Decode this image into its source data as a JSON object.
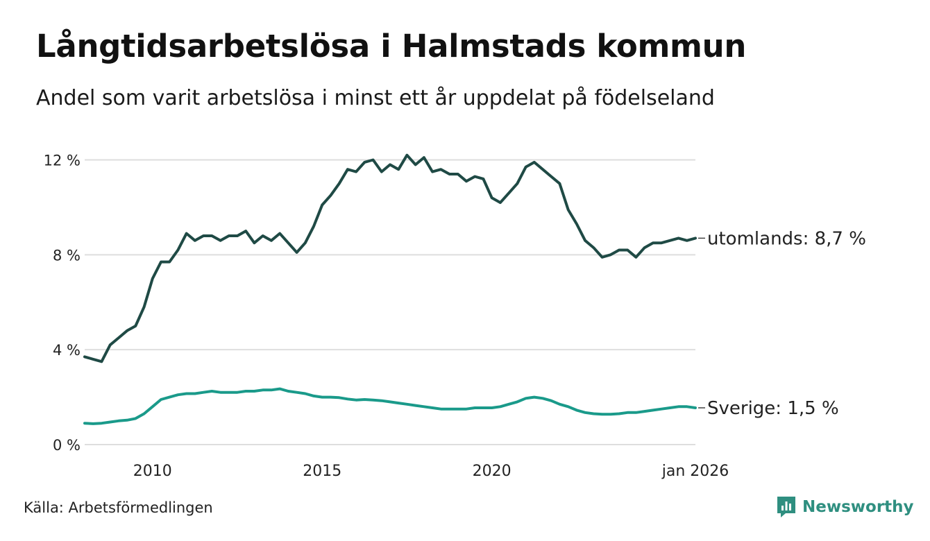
{
  "header": {
    "title": "Långtidsarbetslösa i Halmstads kommun",
    "subtitle": "Andel som varit arbetslösa i minst ett år uppdelat på födelseland"
  },
  "footer": {
    "source": "Källa: Arbetsförmedlingen",
    "brand": "Newsworthy"
  },
  "colors": {
    "utomlands": "#1f4a45",
    "sverige": "#1a9a8a",
    "grid": "#dedede",
    "brand": "#2f8f80"
  },
  "icons": {
    "brand": "newsworthy-logo-icon"
  },
  "chart_data": {
    "type": "line",
    "title": "Långtidsarbetslösa i Halmstads kommun",
    "subtitle": "Andel som varit arbetslösa i minst ett år uppdelat på födelseland",
    "xlabel": "",
    "ylabel": "",
    "x_range": [
      2008.0,
      2026.0
    ],
    "ylim": [
      0,
      12.6
    ],
    "y_ticks": [
      0,
      4,
      8,
      12
    ],
    "y_tick_labels": [
      "0 %",
      "4 %",
      "8 %",
      "12 %"
    ],
    "x_ticks": [
      2010,
      2015,
      2020,
      2026
    ],
    "x_tick_labels": [
      "2010",
      "2015",
      "2020",
      "jan 2026"
    ],
    "grid": true,
    "series": [
      {
        "name": "utomlands",
        "end_label": "utomlands: 8,7 %",
        "x": [
          2008.0,
          2008.25,
          2008.5,
          2008.75,
          2009.0,
          2009.25,
          2009.5,
          2009.75,
          2010.0,
          2010.25,
          2010.5,
          2010.75,
          2011.0,
          2011.25,
          2011.5,
          2011.75,
          2012.0,
          2012.25,
          2012.5,
          2012.75,
          2013.0,
          2013.25,
          2013.5,
          2013.75,
          2014.0,
          2014.25,
          2014.5,
          2014.75,
          2015.0,
          2015.25,
          2015.5,
          2015.75,
          2016.0,
          2016.25,
          2016.5,
          2016.75,
          2017.0,
          2017.25,
          2017.5,
          2017.75,
          2018.0,
          2018.25,
          2018.5,
          2018.75,
          2019.0,
          2019.25,
          2019.5,
          2019.75,
          2020.0,
          2020.25,
          2020.5,
          2020.75,
          2021.0,
          2021.25,
          2021.5,
          2021.75,
          2022.0,
          2022.25,
          2022.5,
          2022.75,
          2023.0,
          2023.25,
          2023.5,
          2023.75,
          2024.0,
          2024.25,
          2024.5,
          2024.75,
          2025.0,
          2025.25,
          2025.5,
          2025.75,
          2026.0
        ],
        "values": [
          3.7,
          3.6,
          3.5,
          4.2,
          4.5,
          4.8,
          5.0,
          5.8,
          7.0,
          7.7,
          7.7,
          8.2,
          8.9,
          8.6,
          8.8,
          8.8,
          8.6,
          8.8,
          8.8,
          9.0,
          8.5,
          8.8,
          8.6,
          8.9,
          8.5,
          8.1,
          8.5,
          9.2,
          10.1,
          10.5,
          11.0,
          11.6,
          11.5,
          11.9,
          12.0,
          11.5,
          11.8,
          11.6,
          12.2,
          11.8,
          12.1,
          11.5,
          11.6,
          11.4,
          11.4,
          11.1,
          11.3,
          11.2,
          10.4,
          10.2,
          10.6,
          11.0,
          11.7,
          11.9,
          11.6,
          11.3,
          11.0,
          9.9,
          9.3,
          8.6,
          8.3,
          7.9,
          8.0,
          8.2,
          8.2,
          7.9,
          8.3,
          8.5,
          8.5,
          8.6,
          8.7,
          8.6,
          8.7
        ]
      },
      {
        "name": "Sverige",
        "end_label": "Sverige: 1,5 %",
        "x": [
          2008.0,
          2008.25,
          2008.5,
          2008.75,
          2009.0,
          2009.25,
          2009.5,
          2009.75,
          2010.0,
          2010.25,
          2010.5,
          2010.75,
          2011.0,
          2011.25,
          2011.5,
          2011.75,
          2012.0,
          2012.25,
          2012.5,
          2012.75,
          2013.0,
          2013.25,
          2013.5,
          2013.75,
          2014.0,
          2014.25,
          2014.5,
          2014.75,
          2015.0,
          2015.25,
          2015.5,
          2015.75,
          2016.0,
          2016.25,
          2016.5,
          2016.75,
          2017.0,
          2017.25,
          2017.5,
          2017.75,
          2018.0,
          2018.25,
          2018.5,
          2018.75,
          2019.0,
          2019.25,
          2019.5,
          2019.75,
          2020.0,
          2020.25,
          2020.5,
          2020.75,
          2021.0,
          2021.25,
          2021.5,
          2021.75,
          2022.0,
          2022.25,
          2022.5,
          2022.75,
          2023.0,
          2023.25,
          2023.5,
          2023.75,
          2024.0,
          2024.25,
          2024.5,
          2024.75,
          2025.0,
          2025.25,
          2025.5,
          2025.75,
          2026.0
        ],
        "values": [
          0.9,
          0.88,
          0.9,
          0.95,
          1.0,
          1.03,
          1.1,
          1.3,
          1.6,
          1.9,
          2.0,
          2.1,
          2.15,
          2.15,
          2.2,
          2.25,
          2.2,
          2.2,
          2.2,
          2.25,
          2.25,
          2.3,
          2.3,
          2.35,
          2.25,
          2.2,
          2.15,
          2.05,
          2.0,
          2.0,
          1.98,
          1.92,
          1.88,
          1.9,
          1.88,
          1.85,
          1.8,
          1.75,
          1.7,
          1.65,
          1.6,
          1.55,
          1.5,
          1.5,
          1.5,
          1.5,
          1.55,
          1.55,
          1.55,
          1.6,
          1.7,
          1.8,
          1.95,
          2.0,
          1.95,
          1.85,
          1.7,
          1.6,
          1.45,
          1.35,
          1.3,
          1.28,
          1.28,
          1.3,
          1.35,
          1.35,
          1.4,
          1.45,
          1.5,
          1.55,
          1.6,
          1.6,
          1.55
        ]
      }
    ]
  }
}
